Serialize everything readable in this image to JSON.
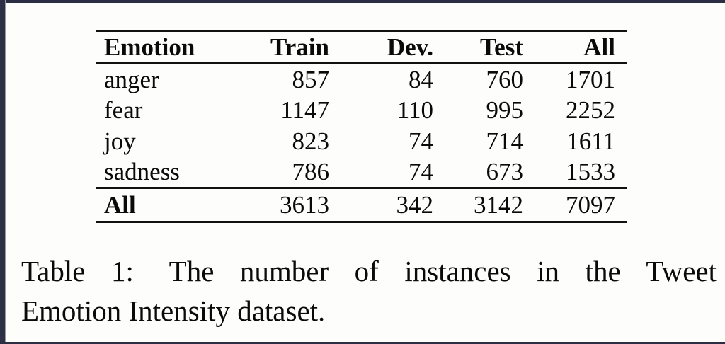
{
  "page": {
    "background_color": "#fdfdfc",
    "edge_color": "#2e3047",
    "text_color": "#0a0a0a"
  },
  "table": {
    "columns": [
      "Emotion",
      "Train",
      "Dev.",
      "Test",
      "All"
    ],
    "rows": [
      {
        "emotion": "anger",
        "train": "857",
        "dev": "84",
        "test": "760",
        "all": "1701"
      },
      {
        "emotion": "fear",
        "train": "1147",
        "dev": "110",
        "test": "995",
        "all": "2252"
      },
      {
        "emotion": "joy",
        "train": "823",
        "dev": "74",
        "test": "714",
        "all": "1611"
      },
      {
        "emotion": "sadness",
        "train": "786",
        "dev": "74",
        "test": "673",
        "all": "1533"
      }
    ],
    "total_row": {
      "emotion": "All",
      "train": "3613",
      "dev": "342",
      "test": "3142",
      "all": "7097"
    }
  },
  "caption": {
    "label": "Table 1:",
    "line1_rest": "The number of instances in the Tweet",
    "line2": "Emotion Intensity dataset.",
    "full_text": "Table 1: The number of instances in the Tweet Emotion Intensity dataset."
  }
}
